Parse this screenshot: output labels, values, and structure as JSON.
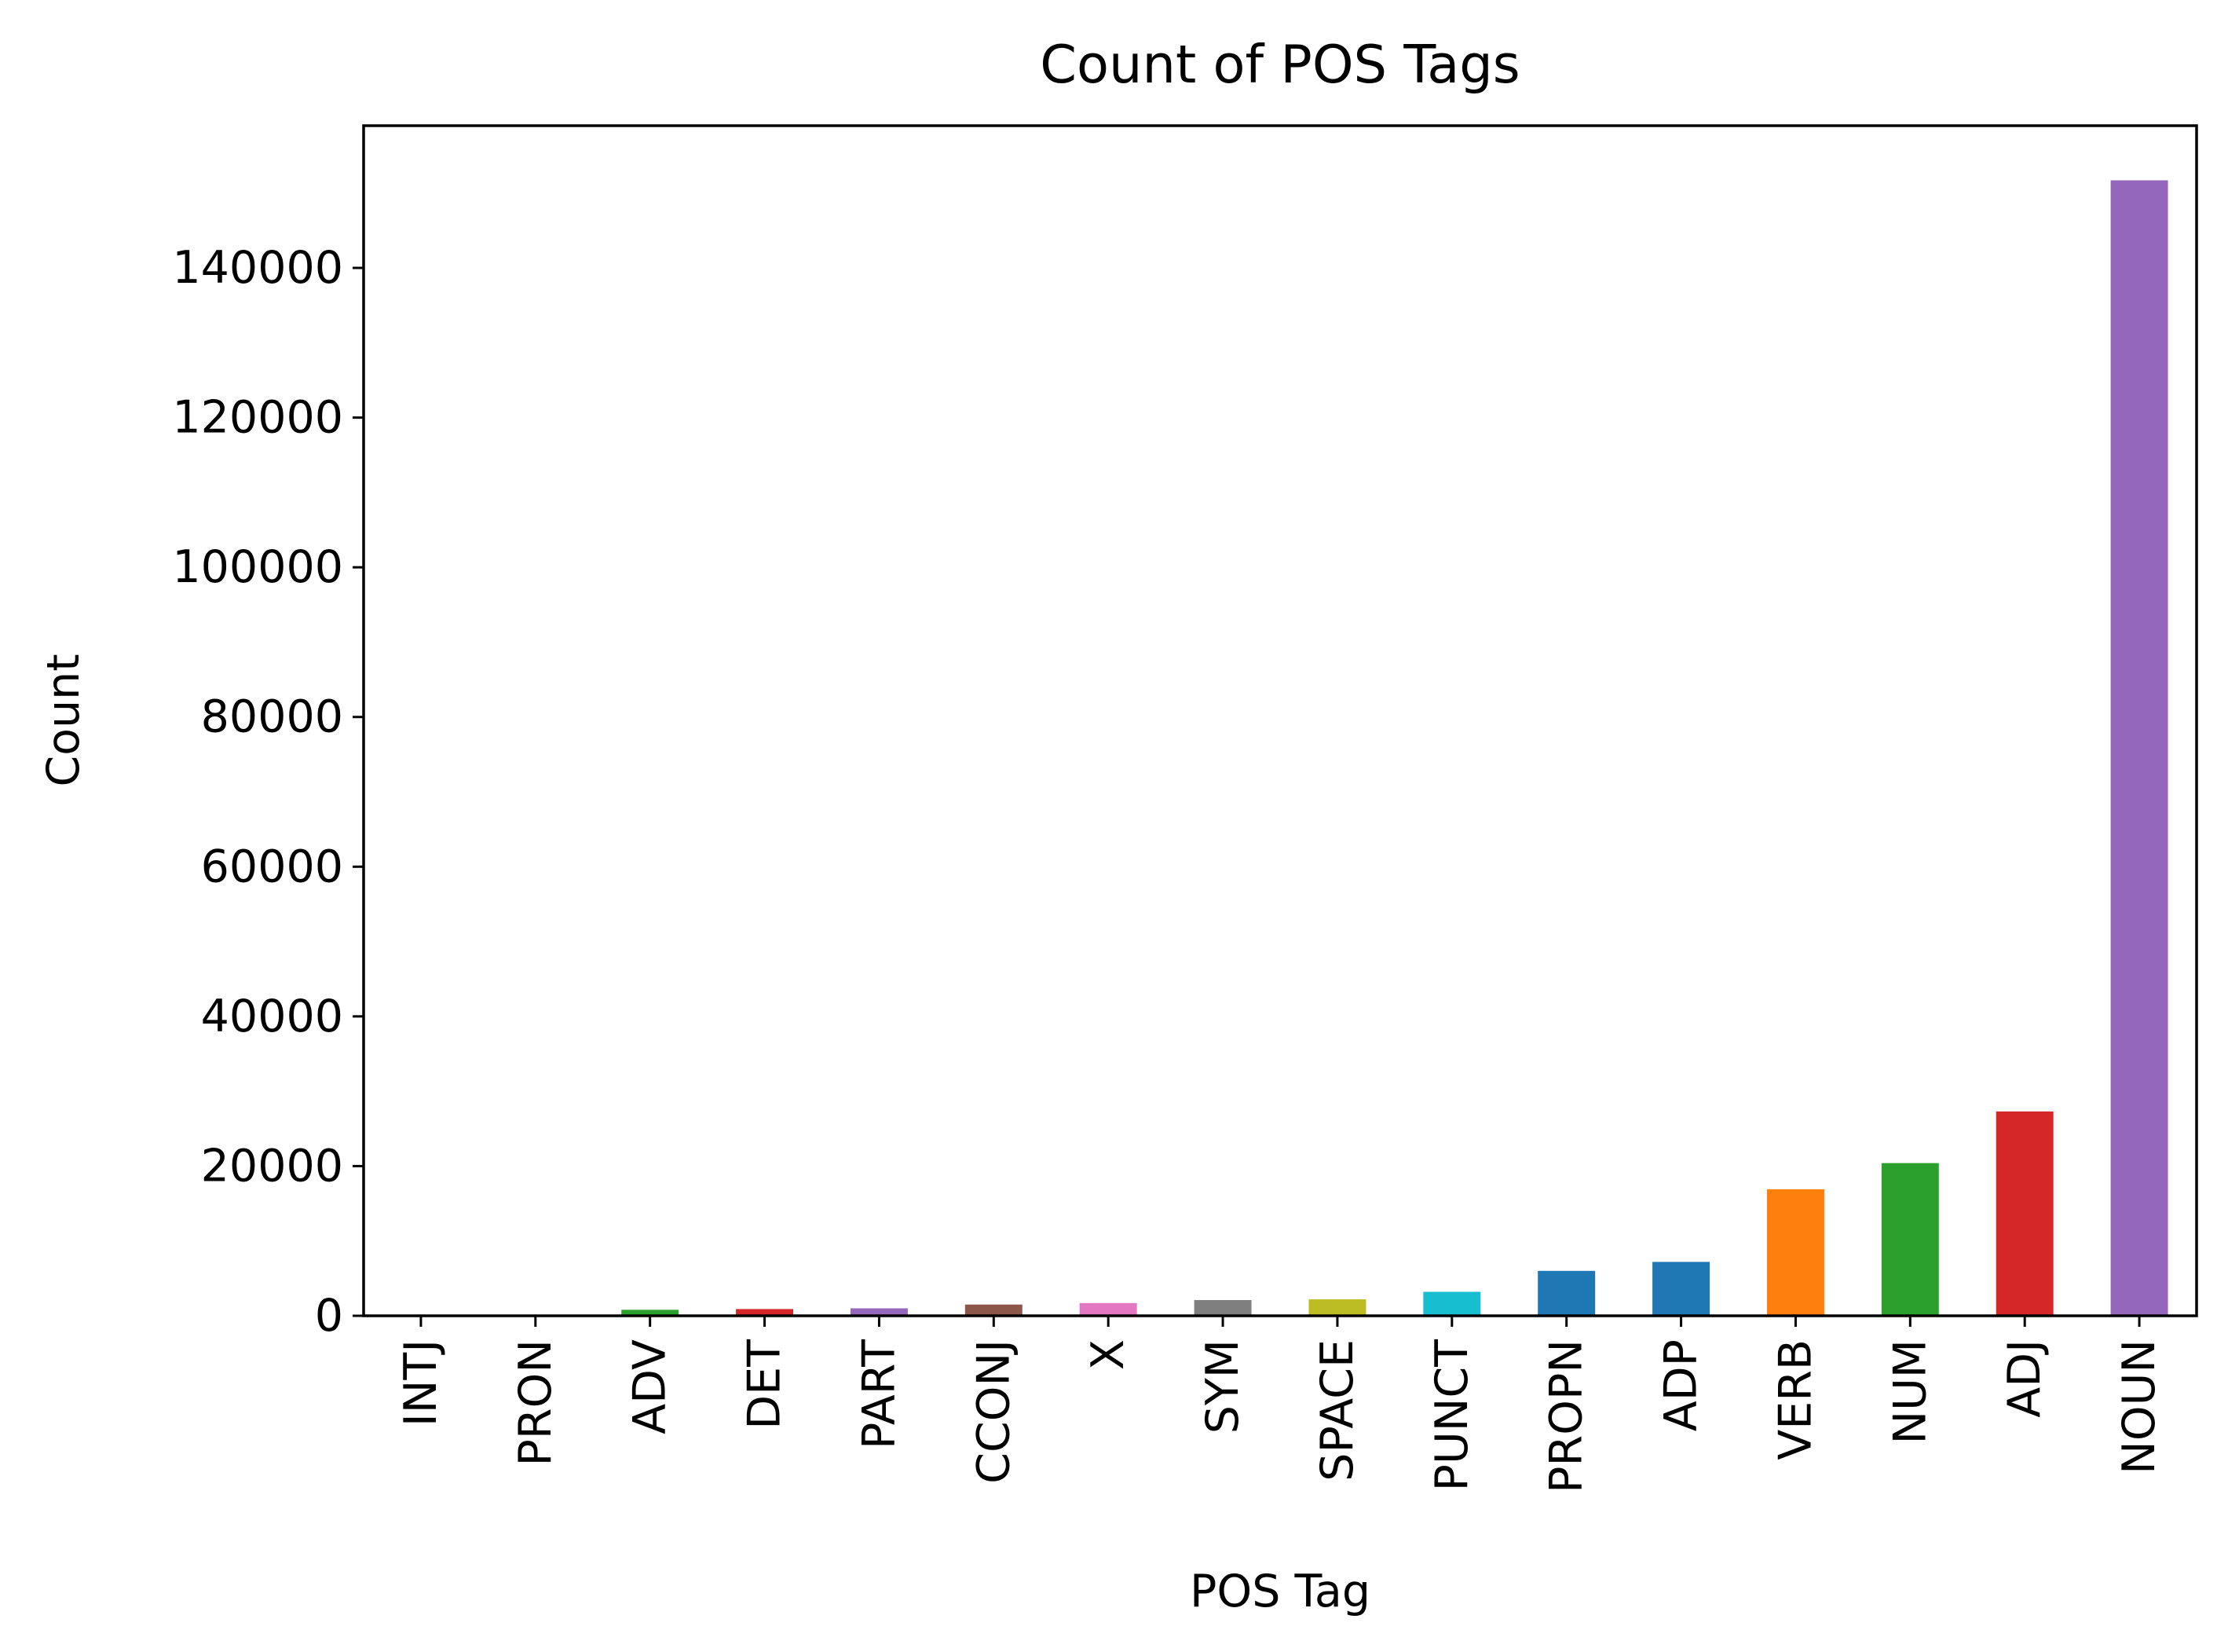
{
  "chart_data": {
    "type": "bar",
    "title": "Count of POS Tags",
    "xlabel": "POS Tag",
    "ylabel": "Count",
    "categories": [
      "INTJ",
      "PRON",
      "ADV",
      "DET",
      "PART",
      "CCONJ",
      "X",
      "SYM",
      "SPACE",
      "PUNCT",
      "PROPN",
      "ADP",
      "VERB",
      "NUM",
      "ADJ",
      "NOUN"
    ],
    "values": [
      30,
      80,
      800,
      900,
      1000,
      1500,
      1700,
      2100,
      2200,
      3200,
      6000,
      7200,
      16900,
      20400,
      27300,
      151700
    ],
    "colors": [
      "#1f77b4",
      "#ff7f0e",
      "#2ca02c",
      "#d62728",
      "#9467bd",
      "#8c564b",
      "#e377c2",
      "#7f7f7f",
      "#bcbd22",
      "#17becf",
      "#1f77b4",
      "#1f77b4",
      "#ff7f0e",
      "#2ca02c",
      "#d62728",
      "#9467bd"
    ],
    "ylim": [
      0,
      159000
    ],
    "yticks": [
      0,
      20000,
      40000,
      60000,
      80000,
      100000,
      120000,
      140000
    ],
    "ytick_labels": [
      "0",
      "20000",
      "40000",
      "60000",
      "80000",
      "100000",
      "120000",
      "140000"
    ],
    "grid": false,
    "legend": "none"
  }
}
